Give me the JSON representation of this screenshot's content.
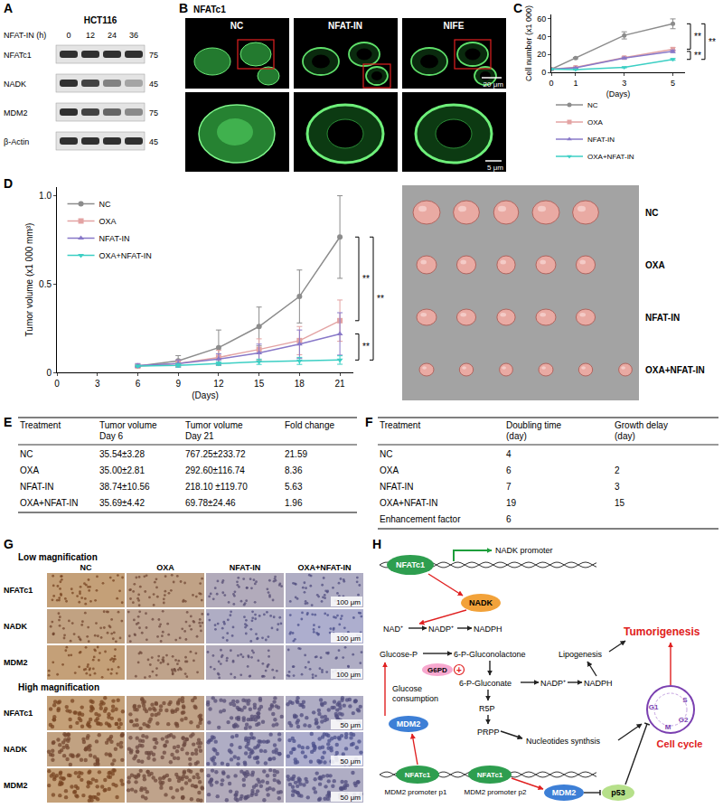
{
  "panel_letters": [
    "A",
    "B",
    "C",
    "D",
    "E",
    "F",
    "G",
    "H"
  ],
  "blot": {
    "cell_line": "HCT116",
    "treatment_label": "NFAT-IN (h)",
    "lanes": [
      "0",
      "12",
      "24",
      "36"
    ],
    "rows": [
      {
        "protein": "NFATc1",
        "mw": "75"
      },
      {
        "protein": "NADK",
        "mw": "45"
      },
      {
        "protein": "MDM2",
        "mw": "75"
      },
      {
        "protein": "β-Actin",
        "mw": "45"
      }
    ]
  },
  "microscopy": {
    "stain": "NFATc1",
    "conditions": [
      "NC",
      "NFAT-IN",
      "NIFE"
    ],
    "scale_top": "20 μm",
    "scale_bottom": "5 μm"
  },
  "chart_data": [
    {
      "panel": "C",
      "type": "line",
      "x_label": "(Days)",
      "y_label": "Cell number (x1 000)",
      "x": [
        0,
        1,
        3,
        5
      ],
      "xlim": [
        0,
        5.5
      ],
      "xticks": [
        0,
        1,
        3,
        5
      ],
      "ylim": [
        0,
        65
      ],
      "yticks": [
        0,
        20,
        40,
        60
      ],
      "grid": false,
      "legend": "bottom",
      "series": [
        {
          "name": "NC",
          "color": "#8c8c8c",
          "marker": "circle",
          "values": [
            3.5,
            16,
            41.5,
            54.5
          ],
          "errors": [
            0.5,
            0.8,
            4,
            5.5
          ]
        },
        {
          "name": "OXA",
          "color": "#e3a3a3",
          "marker": "square",
          "values": [
            3.5,
            5.5,
            16.5,
            26
          ],
          "errors": [
            0.4,
            0.6,
            1,
            2
          ]
        },
        {
          "name": "NFAT-IN",
          "color": "#8878c8",
          "marker": "triangle-up",
          "values": [
            3.5,
            5,
            16,
            23.5
          ],
          "errors": [
            0.4,
            0.5,
            1,
            1.5
          ]
        },
        {
          "name": "OXA+NFAT-IN",
          "color": "#3ccfc4",
          "marker": "triangle-down",
          "values": [
            3.5,
            3,
            5.5,
            14.5
          ],
          "errors": [
            0.4,
            0.3,
            0.5,
            1
          ]
        }
      ],
      "annotations": [
        {
          "text": "**",
          "from": "NC",
          "to": "OXA"
        },
        {
          "text": "**",
          "from": "NFAT-IN",
          "to": "OXA+NFAT-IN"
        },
        {
          "text": "**",
          "from": "NC",
          "to": "OXA+NFAT-IN"
        }
      ]
    },
    {
      "panel": "D",
      "type": "line",
      "x_label": "(Days)",
      "y_label": "Tumor volume (x1 000 mm³)",
      "x": [
        6,
        9,
        12,
        15,
        18,
        21
      ],
      "xlim": [
        0,
        22
      ],
      "xticks": [
        0,
        3,
        6,
        9,
        12,
        15,
        18,
        21
      ],
      "ylim": [
        0,
        1.05
      ],
      "yticks": [
        0,
        0.5,
        {
          "value": 1,
          "label": "1.0"
        }
      ],
      "grid": false,
      "legend": "upper left",
      "series": [
        {
          "name": "NC",
          "color": "#8c8c8c",
          "marker": "circle",
          "values": [
            0.036,
            0.065,
            0.14,
            0.26,
            0.43,
            0.767
          ],
          "errors": [
            0.003,
            0.03,
            0.1,
            0.11,
            0.15,
            0.234
          ]
        },
        {
          "name": "OXA",
          "color": "#e3a3a3",
          "marker": "square",
          "values": [
            0.035,
            0.05,
            0.085,
            0.13,
            0.18,
            0.293
          ],
          "errors": [
            0.003,
            0.02,
            0.04,
            0.06,
            0.08,
            0.117
          ]
        },
        {
          "name": "NFAT-IN",
          "color": "#8878c8",
          "marker": "triangle-up",
          "values": [
            0.039,
            0.05,
            0.075,
            0.11,
            0.16,
            0.218
          ],
          "errors": [
            0.011,
            0.02,
            0.03,
            0.05,
            0.08,
            0.12
          ]
        },
        {
          "name": "OXA+NFAT-IN",
          "color": "#3ccfc4",
          "marker": "triangle-down",
          "values": [
            0.036,
            0.04,
            0.05,
            0.06,
            0.065,
            0.07
          ],
          "errors": [
            0.004,
            0.01,
            0.01,
            0.015,
            0.02,
            0.024
          ]
        }
      ],
      "annotations": [
        {
          "text": "**",
          "from": "NC",
          "to": "OXA"
        },
        {
          "text": "**",
          "from": "NFAT-IN",
          "to": "OXA+NFAT-IN"
        },
        {
          "text": "**",
          "from": "NC",
          "to": "OXA+NFAT-IN"
        }
      ]
    }
  ],
  "tumor_photo": {
    "groups": [
      "NC",
      "OXA",
      "NFAT-IN",
      "OXA+NFAT-IN"
    ]
  },
  "table_E": {
    "header": [
      [
        "Treatment"
      ],
      [
        "Tumor volume",
        "Day 6"
      ],
      [
        "Tumor volume",
        "Day 21"
      ],
      [
        "Fold change"
      ]
    ],
    "rows": [
      [
        "NC",
        "35.54±3.28",
        "767.25±233.72",
        "21.59"
      ],
      [
        "OXA",
        "35.00±2.81",
        "292.60±116.74",
        "8.36"
      ],
      [
        "NFAT-IN",
        "38.74±10.56",
        "218.10 ±119.70",
        "5.63"
      ],
      [
        "OXA+NFAT-IN",
        "35.69±4.42",
        "69.78±24.46",
        "1.96"
      ]
    ]
  },
  "table_F": {
    "header": [
      [
        "Treatment"
      ],
      [
        "Doubling time",
        "(day)"
      ],
      [
        "Growth delay",
        "(day)"
      ]
    ],
    "rows": [
      [
        "NC",
        "4",
        null
      ],
      [
        "OXA",
        "6",
        "2"
      ],
      [
        "NFAT-IN",
        "7",
        "3"
      ],
      [
        "OXA+NFAT-IN",
        "19",
        "15"
      ],
      [
        "Enhancement factor",
        "6",
        null
      ]
    ]
  },
  "ihc": {
    "low_title": "Low magnification",
    "high_title": "High magnification",
    "columns": [
      "NC",
      "OXA",
      "NFAT-IN",
      "OXA+NFAT-IN"
    ],
    "rows": [
      "NFATc1",
      "NADK",
      "MDM2"
    ],
    "scale_low": "100 μm",
    "scale_high": "50 μm"
  },
  "diagram": {
    "tf": "NFATc1",
    "nadk_promoter": "NADK promoter",
    "nadk": "NADK",
    "nad": "NAD⁺",
    "nadp": "NADP⁺",
    "nadph": "NADPH",
    "glucose_p": "Glucose-P",
    "g6pd": "G6PD",
    "activation": "+",
    "lactone": "6-P-Gluconolactone",
    "gluconate": "6-P-Gluconate",
    "lipogenesis": "Lipogenesis",
    "r5p": "R5P",
    "prpp": "PRPP",
    "nucleotides": "Nucleotides synthsis",
    "tumorigenesis": "Tumorigenesis",
    "glucose_consumption": "Glucose consumption",
    "mdm2": "MDM2",
    "promoter_p1": "MDM2 promoter p1",
    "promoter_p2": "MDM2 promoter p2",
    "p53": "p53",
    "cell_cycle": "Cell cycle",
    "phases": [
      "S",
      "G2",
      "M",
      "G1"
    ]
  }
}
